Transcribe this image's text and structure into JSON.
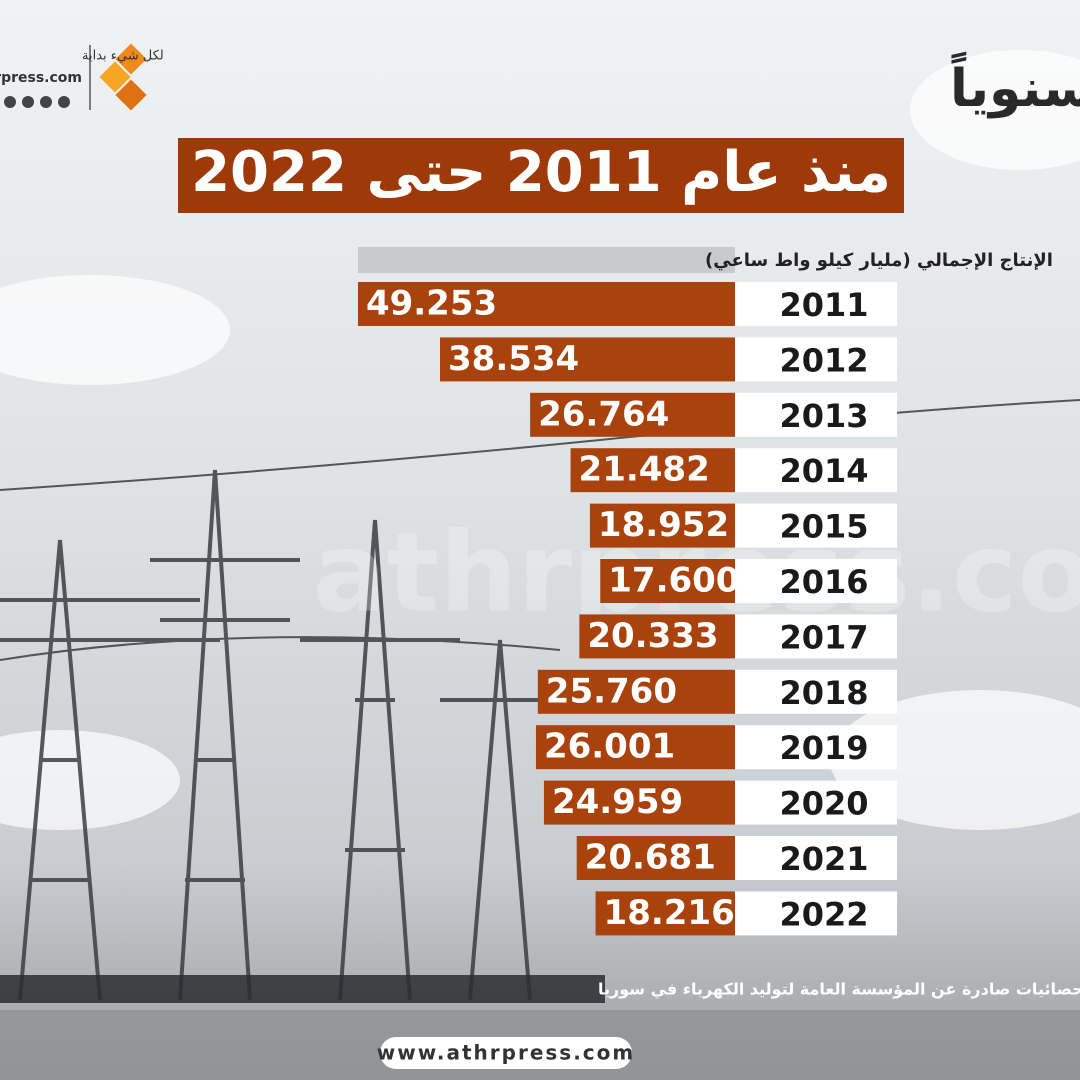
{
  "header": {
    "title": "إنتاج الكهرباء في سوريا سنوياً",
    "subtitle": "منذ عام 2011 حتى 2022",
    "logo_tagline": "لكل شيء بداية",
    "logo_name": "athrpress.com"
  },
  "watermark": "athrpress.com",
  "chart_data": {
    "type": "bar",
    "orientation": "horizontal",
    "x_label": "الإنتاج الإجمالي (مليار كيلو واط ساعي)",
    "categories": [
      "2011",
      "2012",
      "2013",
      "2014",
      "2015",
      "2016",
      "2017",
      "2018",
      "2019",
      "2020",
      "2021",
      "2022"
    ],
    "values": [
      49.253,
      38.534,
      26.764,
      21.482,
      18.952,
      17.6,
      20.333,
      25.76,
      26.001,
      24.959,
      20.681,
      18.216
    ],
    "value_labels": [
      "49.253",
      "38.534",
      "26.764",
      "21.482",
      "18.952",
      "17.600",
      "20.333",
      "25.760",
      "26.001",
      "24.959",
      "20.681",
      "18.216"
    ],
    "color": "#a9420c"
  },
  "footer": {
    "source": "مصدر البيانات: تقارير واحصائيات صادرة عن المؤسسة العامة لتوليد الكهرباء في سوريا",
    "website": "www.athrpress.com"
  }
}
